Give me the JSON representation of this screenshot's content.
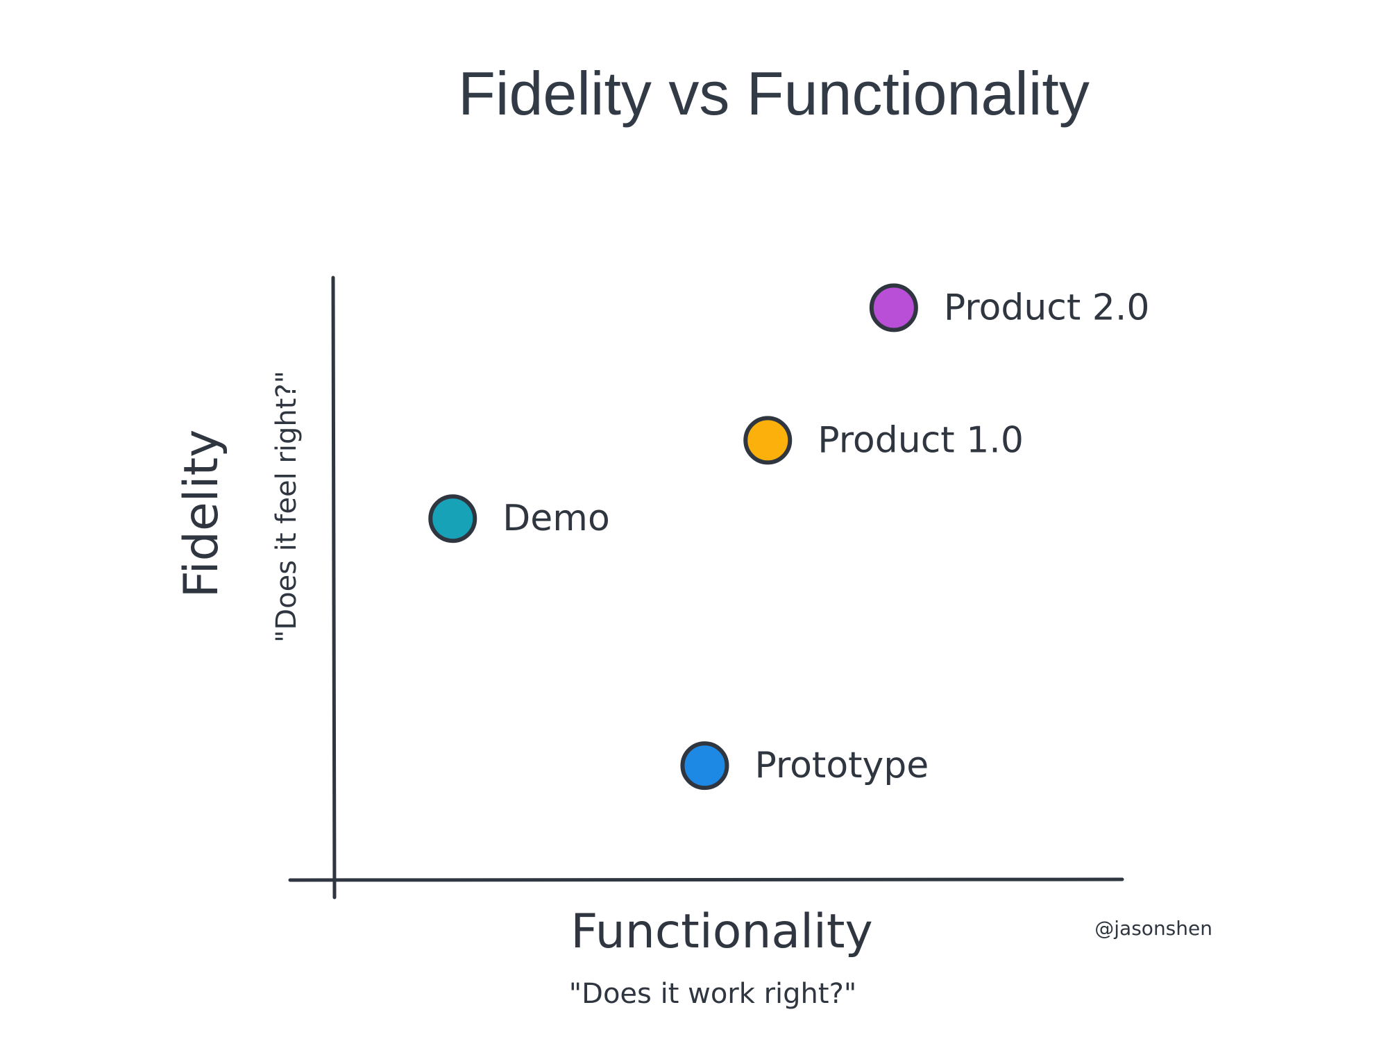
{
  "chart_data": {
    "type": "scatter",
    "title": "Fidelity vs Functionality",
    "xlabel": "Functionality",
    "xlabel_subtitle": "\"Does it work right?\"",
    "ylabel": "Fidelity",
    "ylabel_subtitle": "\"Does it feel right?\"",
    "xlim": [
      0,
      10
    ],
    "ylim": [
      0,
      10
    ],
    "grid": false,
    "legend": "none",
    "points": [
      {
        "label": "Demo",
        "x": 1.5,
        "y": 6.0,
        "color": "#17a2b8"
      },
      {
        "label": "Prototype",
        "x": 4.7,
        "y": 1.9,
        "color": "#1e88e5"
      },
      {
        "label": "Product 1.0",
        "x": 5.5,
        "y": 7.3,
        "color": "#fbb00c"
      },
      {
        "label": "Product 2.0",
        "x": 7.1,
        "y": 9.5,
        "color": "#b84fd6"
      }
    ],
    "credit": "@jasonshen"
  }
}
